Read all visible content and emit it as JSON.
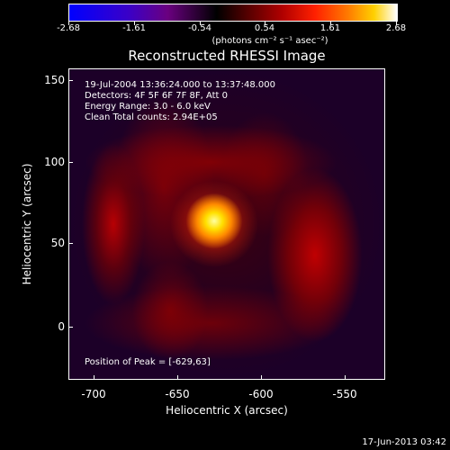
{
  "colorbar": {
    "ticks": [
      "-2.68",
      "-1.61",
      "-0.54",
      "0.54",
      "1.61",
      "2.68"
    ],
    "units": "(photons cm⁻² s⁻¹ asec⁻²)"
  },
  "title": "Reconstructed RHESSI Image",
  "info": {
    "line1": "19-Jul-2004 13:36:24.000 to 13:37:48.000",
    "line2": "Detectors: 4F 5F 6F 7F 8F, Att 0",
    "line3": "Energy Range: 3.0 - 6.0 keV",
    "line4": "Clean    Total counts: 2.94E+05",
    "peak": "Position of Peak = [-629,63]"
  },
  "axes": {
    "xlabel": "Heliocentric X (arcsec)",
    "ylabel": "Heliocentric Y (arcsec)",
    "xticks": [
      "-700",
      "-650",
      "-600",
      "-550"
    ],
    "yticks": [
      "150",
      "100",
      "50",
      "0"
    ]
  },
  "timestamp": "17-Jun-2013 03:42"
}
